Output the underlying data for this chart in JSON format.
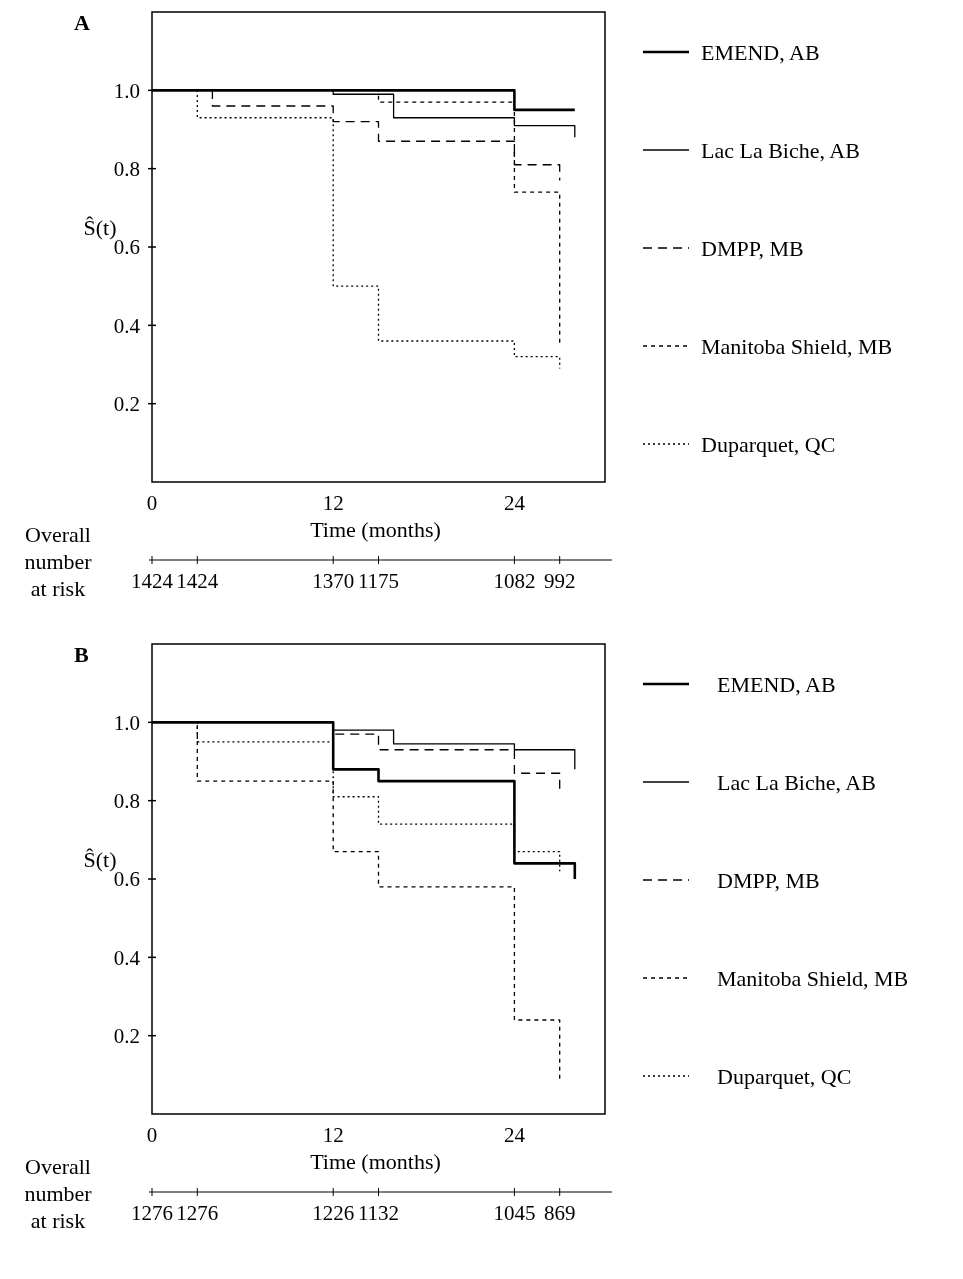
{
  "chart_data": [
    {
      "type": "step",
      "title": "A",
      "xlabel": "Time (months)",
      "ylabel": "Ŝ(t)",
      "xlim": [
        0,
        30
      ],
      "xticks": [
        0,
        12,
        24
      ],
      "ylim": [
        0,
        1.2
      ],
      "yticks": [
        0.2,
        0.4,
        0.6,
        0.8,
        {
          "value": 1,
          "label": "1.0"
        }
      ],
      "grid": false,
      "legend": "right",
      "marker": "none",
      "annotations": [
        "Overall number at risk",
        {
          "text": "1424",
          "x": 0
        },
        {
          "text": "1424",
          "x": 3
        },
        {
          "text": "1370",
          "x": 12
        },
        {
          "text": "1175",
          "x": 15
        },
        {
          "text": "1082",
          "x": 24
        },
        {
          "text": "992",
          "x": 27
        }
      ],
      "series": [
        {
          "name": "EMEND, AB",
          "color": "#000000",
          "line_style": "solid",
          "x": [
            0,
            24,
            28
          ],
          "values": [
            1,
            0.95,
            0.95
          ]
        },
        {
          "name": "Lac La Biche, AB",
          "color": "#000000",
          "line_style": "solid",
          "x": [
            0,
            12,
            16,
            24,
            28,
            28
          ],
          "values": [
            1,
            0.99,
            0.93,
            0.91,
            0.91,
            0.88
          ]
        },
        {
          "name": "DMPP, MB",
          "color": "#000000",
          "line_style": "dashed",
          "x": [
            0,
            4,
            12,
            15,
            24,
            27,
            27
          ],
          "values": [
            1,
            0.96,
            0.92,
            0.87,
            0.81,
            0.81,
            0.77
          ]
        },
        {
          "name": "Manitoba Shield, MB",
          "color": "#000000",
          "line_style": "dashed",
          "x": [
            0,
            15,
            24,
            27,
            27
          ],
          "values": [
            1,
            0.97,
            0.74,
            0.74,
            0.35
          ]
        },
        {
          "name": "Duparquet, QC",
          "color": "#000000",
          "line_style": "dotted",
          "x": [
            0,
            3,
            12,
            15,
            24,
            27,
            27
          ],
          "values": [
            1,
            0.93,
            0.5,
            0.36,
            0.32,
            0.32,
            0.29
          ]
        }
      ]
    },
    {
      "type": "step",
      "title": "B",
      "xlabel": "Time (months)",
      "ylabel": "Ŝ(t)",
      "xlim": [
        0,
        30
      ],
      "xticks": [
        0,
        12,
        24
      ],
      "ylim": [
        0,
        1.2
      ],
      "yticks": [
        0.2,
        0.4,
        0.6,
        0.8,
        {
          "value": 1,
          "label": "1.0"
        }
      ],
      "grid": false,
      "legend": "right",
      "marker": "none",
      "annotations": [
        "Overall number at risk",
        {
          "text": "1276",
          "x": 0
        },
        {
          "text": "1276",
          "x": 3
        },
        {
          "text": "1226",
          "x": 12
        },
        {
          "text": "1132",
          "x": 15
        },
        {
          "text": "1045",
          "x": 24
        },
        {
          "text": "869",
          "x": 27
        }
      ],
      "series": [
        {
          "name": "EMEND, AB",
          "color": "#000000",
          "line_style": "solid",
          "x": [
            0,
            12,
            15,
            24,
            28,
            28
          ],
          "values": [
            1,
            0.88,
            0.85,
            0.64,
            0.64,
            0.6
          ]
        },
        {
          "name": "Lac La Biche, AB",
          "color": "#000000",
          "line_style": "solid",
          "x": [
            0,
            12,
            16,
            24,
            28,
            28
          ],
          "values": [
            1,
            0.98,
            0.945,
            0.93,
            0.93,
            0.88
          ]
        },
        {
          "name": "DMPP, MB",
          "color": "#000000",
          "line_style": "dashed",
          "x": [
            0,
            12,
            15,
            24,
            27,
            27
          ],
          "values": [
            1,
            0.97,
            0.93,
            0.87,
            0.87,
            0.83
          ]
        },
        {
          "name": "Manitoba Shield, MB",
          "color": "#000000",
          "line_style": "dashed",
          "x": [
            0,
            3,
            12,
            15,
            24,
            27,
            27
          ],
          "values": [
            1,
            0.85,
            0.67,
            0.58,
            0.24,
            0.24,
            0.09
          ]
        },
        {
          "name": "Duparquet, QC",
          "color": "#000000",
          "line_style": "dotted",
          "x": [
            0,
            3,
            12,
            15,
            24,
            27,
            27
          ],
          "values": [
            1,
            0.95,
            0.81,
            0.74,
            0.67,
            0.67,
            0.62
          ]
        }
      ]
    }
  ]
}
